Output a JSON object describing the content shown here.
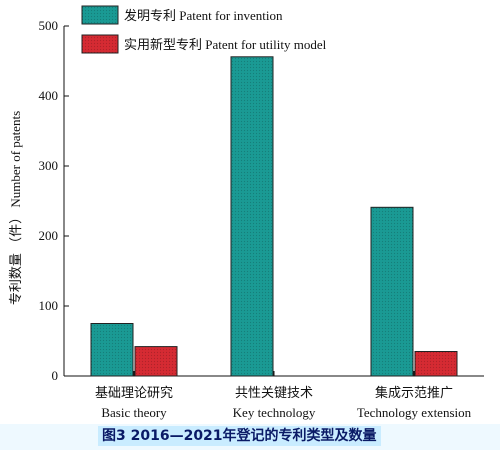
{
  "chart_data": {
    "type": "bar",
    "categories": [
      {
        "zh": "基础理论研究",
        "en": "Basic theory"
      },
      {
        "zh": "共性关键技术",
        "en": "Key technology"
      },
      {
        "zh": "集成示范推广",
        "en": "Technology extension"
      }
    ],
    "series": [
      {
        "name": "发明专利 Patent for invention",
        "values": [
          75,
          456,
          241
        ],
        "color": "#1a9a94"
      },
      {
        "name": "实用新型专利 Patent for utility model",
        "values": [
          42,
          0,
          35
        ],
        "color": "#d52b33"
      }
    ],
    "ylabel": "专利数量 （件） Number of patents",
    "ylim": [
      0,
      500
    ],
    "yticks": [
      0,
      100,
      200,
      300,
      400,
      500
    ],
    "grid": false,
    "legend_position": "top-left"
  },
  "caption": "图3  2016—2021年登记的专利类型及数量"
}
